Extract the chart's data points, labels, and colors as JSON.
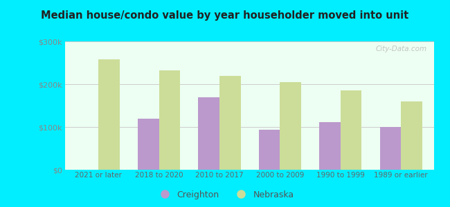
{
  "title": "Median house/condo value by year householder moved into unit",
  "categories": [
    "2021 or later",
    "2018 to 2020",
    "2010 to 2017",
    "2000 to 2009",
    "1990 to 1999",
    "1989 or earlier"
  ],
  "creighton": [
    null,
    120000,
    170000,
    93000,
    112000,
    100000
  ],
  "nebraska": [
    258000,
    233000,
    220000,
    205000,
    185000,
    160000
  ],
  "creighton_color": "#bb99cc",
  "nebraska_color": "#ccdd99",
  "background_outer": "#00eeff",
  "background_inner": "#edfff2",
  "ylim": [
    0,
    300000
  ],
  "yticks": [
    0,
    100000,
    200000,
    300000
  ],
  "ytick_labels": [
    "$0",
    "$100k",
    "$200k",
    "$300k"
  ],
  "grid_color": "#cccccc",
  "bar_width": 0.35,
  "watermark": "City-Data.com"
}
